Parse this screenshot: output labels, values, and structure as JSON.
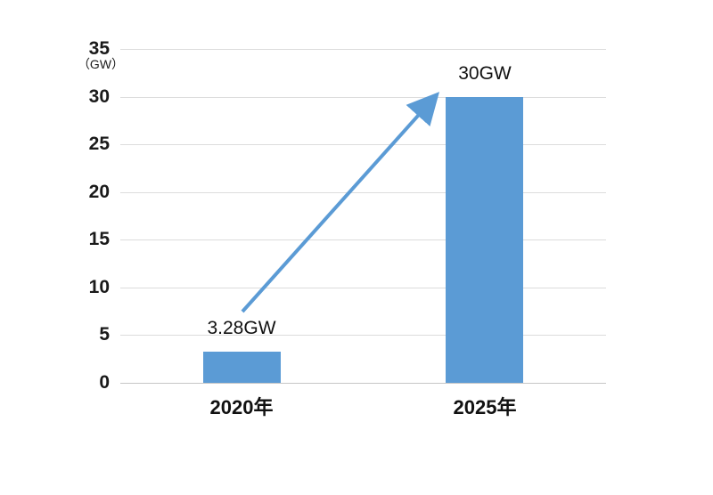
{
  "chart_data": {
    "type": "bar",
    "title": "",
    "unit_label": "（GW）",
    "categories": [
      "2020年",
      "2025年"
    ],
    "values": [
      3.28,
      30
    ],
    "data_labels": [
      "3.28GW",
      "30GW"
    ],
    "y_ticks": [
      0,
      5,
      10,
      15,
      20,
      25,
      30,
      35
    ],
    "ylim": [
      0,
      35
    ],
    "grid": true,
    "legend": "none",
    "bar_color": "#5B9BD5",
    "arrow_color": "#5B9BD5",
    "gridline_color": "#DCDCDC",
    "axis_line_color": "#C6C6C6",
    "annotation": "growth arrow from 2020 bar label up to top of 2025 bar"
  }
}
